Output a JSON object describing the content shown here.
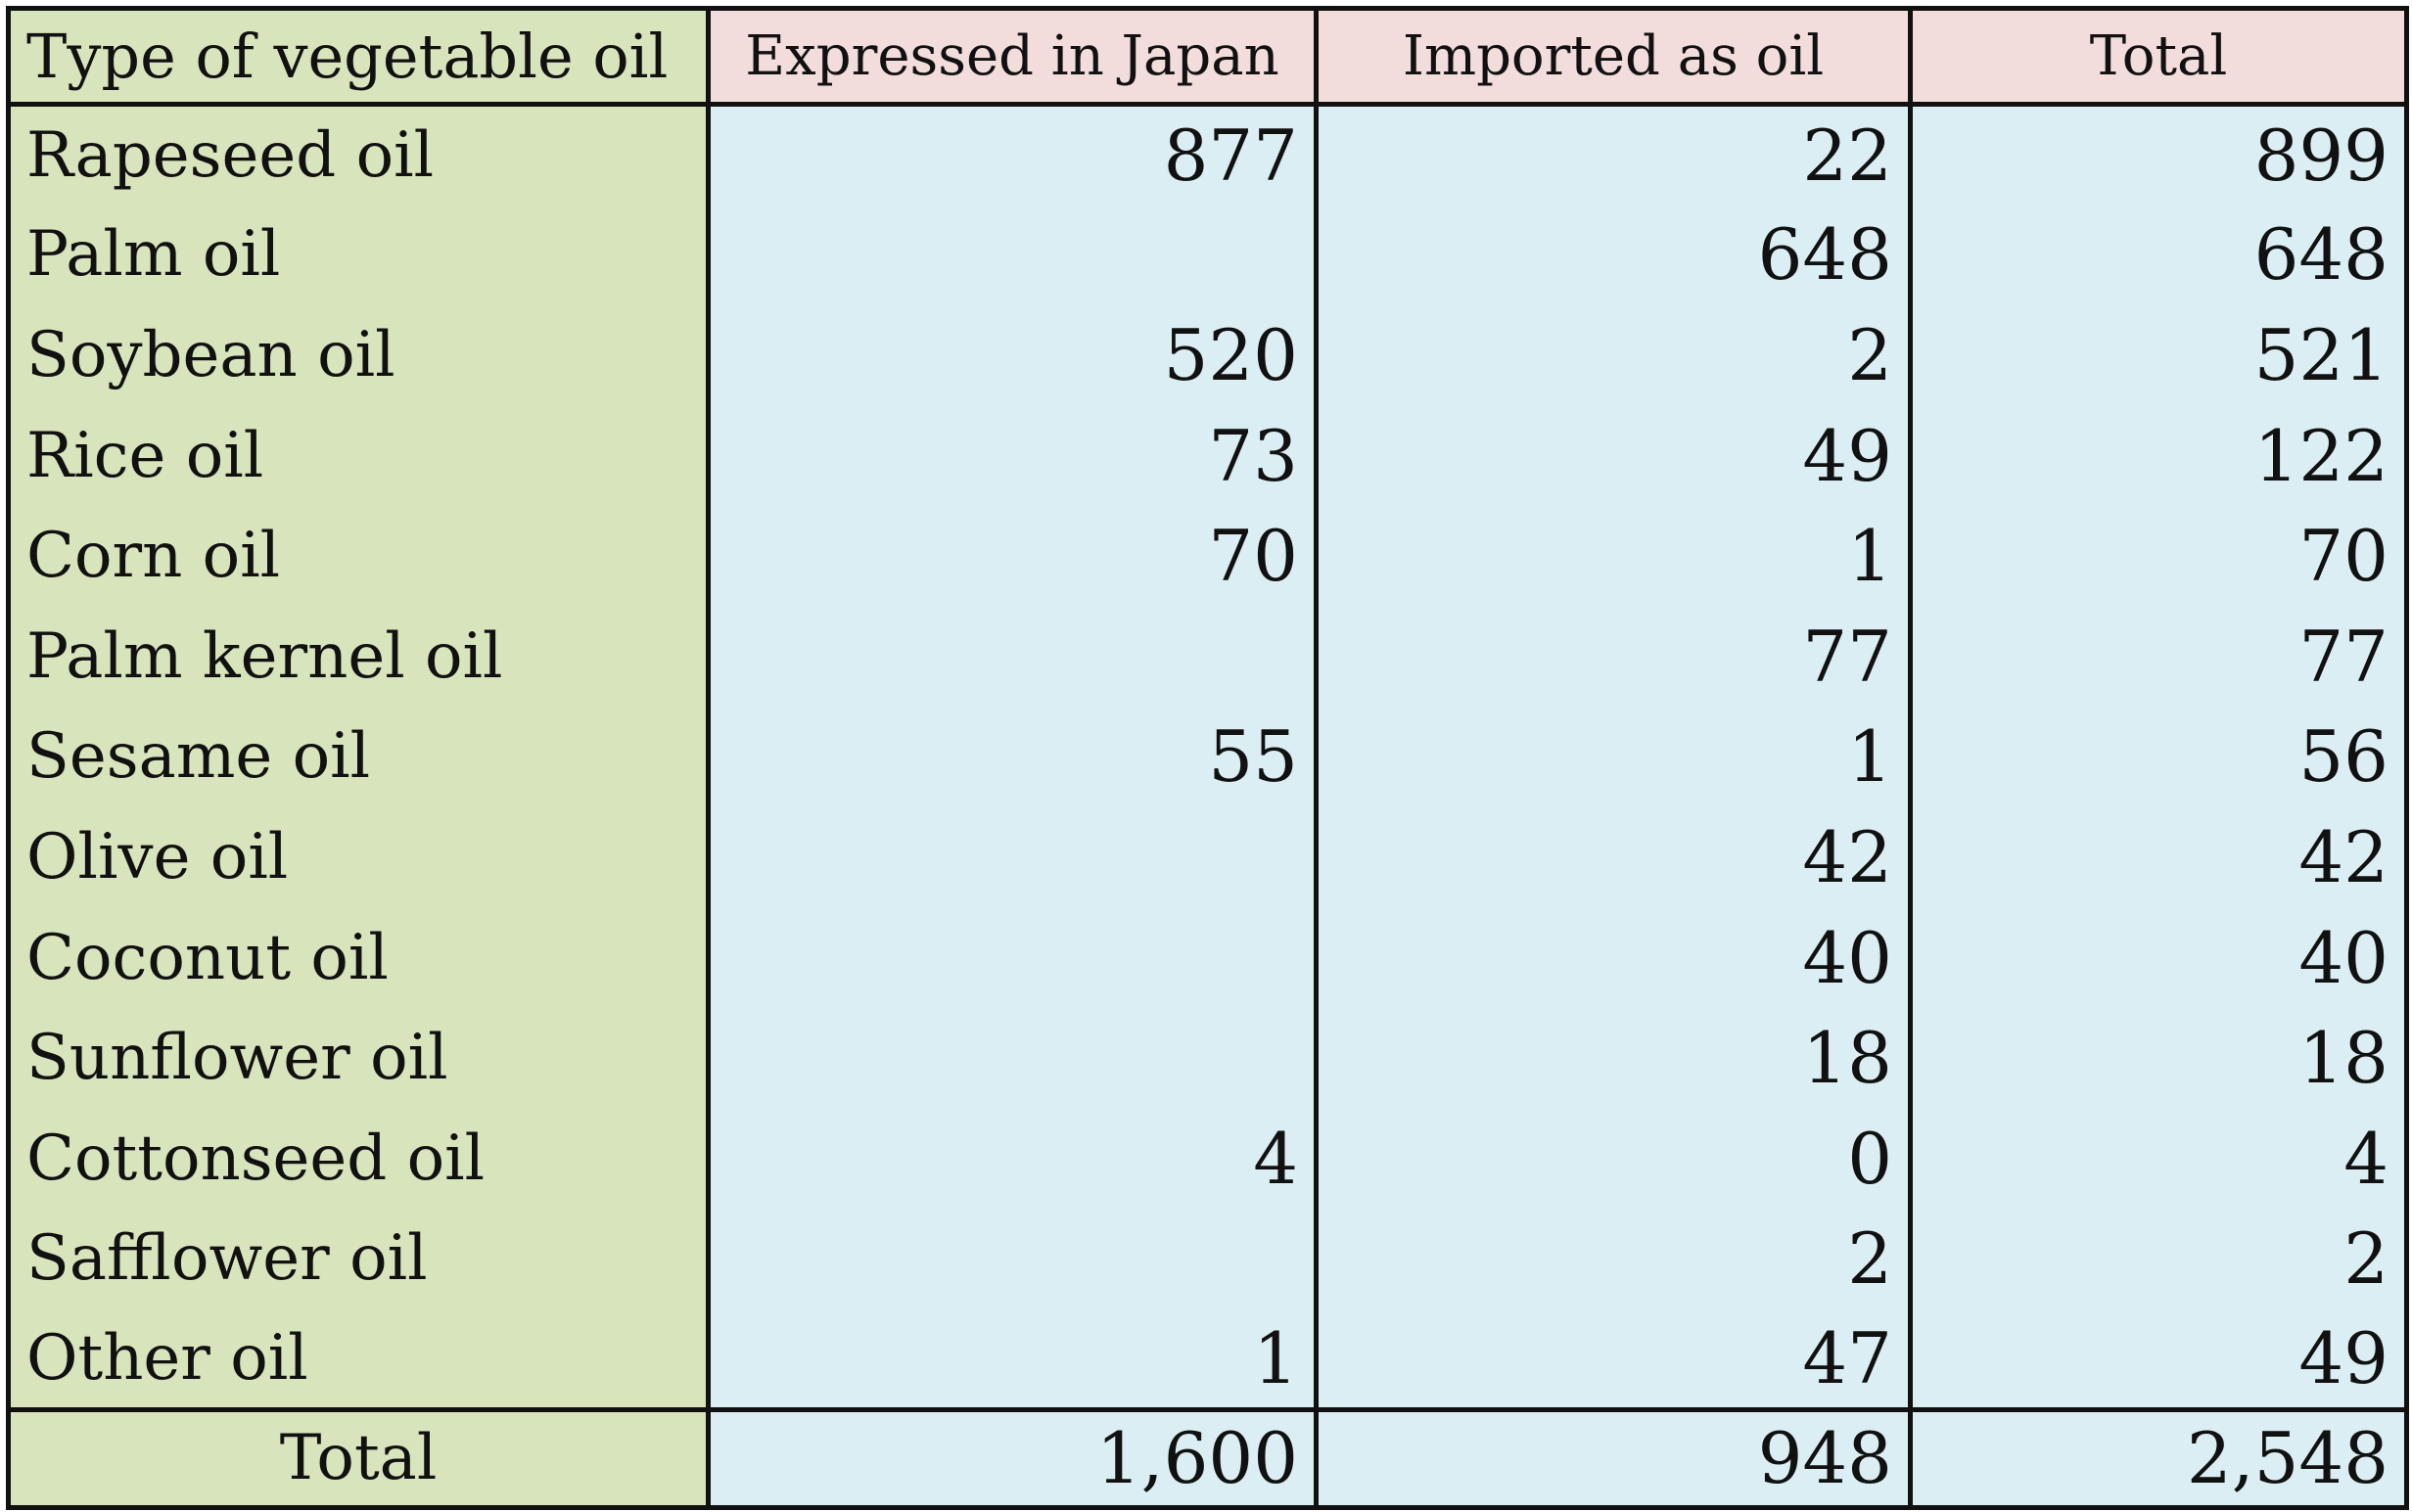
{
  "chart_data": {
    "type": "table",
    "columns": [
      "Type of vegetable oil",
      "Expressed in Japan",
      "Imported as oil",
      "Total"
    ],
    "rows": [
      {
        "type": "Rapeseed oil",
        "expressed": "877",
        "imported": "22",
        "total": "899"
      },
      {
        "type": "Palm oil",
        "expressed": "",
        "imported": "648",
        "total": "648"
      },
      {
        "type": "Soybean oil",
        "expressed": "520",
        "imported": "2",
        "total": "521"
      },
      {
        "type": "Rice oil",
        "expressed": "73",
        "imported": "49",
        "total": "122"
      },
      {
        "type": "Corn oil",
        "expressed": "70",
        "imported": "1",
        "total": "70"
      },
      {
        "type": "Palm kernel oil",
        "expressed": "",
        "imported": "77",
        "total": "77"
      },
      {
        "type": "Sesame oil",
        "expressed": "55",
        "imported": "1",
        "total": "56"
      },
      {
        "type": "Olive oil",
        "expressed": "",
        "imported": "42",
        "total": "42"
      },
      {
        "type": "Coconut oil",
        "expressed": "",
        "imported": "40",
        "total": "40"
      },
      {
        "type": "Sunflower oil",
        "expressed": "",
        "imported": "18",
        "total": "18"
      },
      {
        "type": "Cottonseed oil",
        "expressed": "4",
        "imported": "0",
        "total": "4"
      },
      {
        "type": "Safflower oil",
        "expressed": "",
        "imported": "2",
        "total": "2"
      },
      {
        "type": "Other oil",
        "expressed": "1",
        "imported": "47",
        "total": "49"
      }
    ],
    "total_row": {
      "type": "Total",
      "expressed": "1,600",
      "imported": "948",
      "total": "2,548"
    }
  },
  "colors": {
    "header_accent": "#f2dcdc",
    "label_column": "#d8e4bc",
    "value_cells": "#daeef3",
    "border": "#111111"
  }
}
